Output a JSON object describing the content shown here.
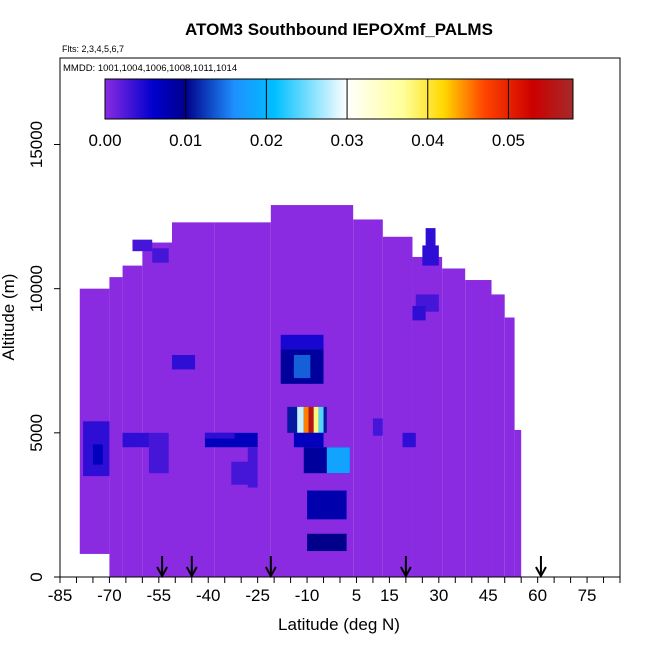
{
  "chart_data": {
    "type": "heatmap",
    "title": "ATOM3 Southbound IEPOXmf_PALMS",
    "flights_label": "Flts: 2,3,4,5,6,7",
    "dates_label": "MMDD: 1001,1004,1006,1008,1011,1014",
    "xlabel": "Latitude (deg N)",
    "ylabel": "Altitude (m)",
    "xlim": [
      -85,
      85
    ],
    "ylim": [
      0,
      18000
    ],
    "x_ticks": [
      -85,
      -80,
      -75,
      -70,
      -65,
      -60,
      -55,
      -50,
      -45,
      -40,
      -35,
      -30,
      -25,
      -20,
      -15,
      -10,
      -5,
      0,
      5,
      10,
      15,
      20,
      25,
      30,
      35,
      40,
      45,
      50,
      55,
      60,
      65,
      70,
      75,
      80,
      85
    ],
    "x_tick_labels": [
      "-85",
      "-70",
      "-55",
      "-40",
      "-25",
      "-10",
      "5",
      "15",
      "30",
      "45",
      "60",
      "75"
    ],
    "x_tick_label_values": [
      -85,
      -70,
      -55,
      -40,
      -25,
      -10,
      5,
      15,
      30,
      45,
      60,
      75
    ],
    "y_ticks": [
      0,
      5000,
      10000,
      15000
    ],
    "y_tick_labels": [
      "0",
      "5000",
      "10000",
      "15000"
    ],
    "colorbar": {
      "min": 0.0,
      "max": 0.058,
      "ticks": [
        0.0,
        0.01,
        0.02,
        0.03,
        0.04,
        0.05
      ],
      "tick_labels": [
        "0.00",
        "0.01",
        "0.02",
        "0.03",
        "0.04",
        "0.05"
      ],
      "stops": [
        {
          "v": 0.0,
          "c": "#8A2BE2"
        },
        {
          "v": 0.006,
          "c": "#0000CD"
        },
        {
          "v": 0.01,
          "c": "#00008B"
        },
        {
          "v": 0.016,
          "c": "#1E90FF"
        },
        {
          "v": 0.021,
          "c": "#00BFFF"
        },
        {
          "v": 0.03,
          "c": "#FFFFFF"
        },
        {
          "v": 0.037,
          "c": "#FFFF99"
        },
        {
          "v": 0.042,
          "c": "#FFD700"
        },
        {
          "v": 0.047,
          "c": "#FF4500"
        },
        {
          "v": 0.053,
          "c": "#CC0000"
        },
        {
          "v": 0.058,
          "c": "#A52A2A"
        }
      ]
    },
    "background_color": "#8A2BE2",
    "coverage": [
      {
        "lat": [
          -79,
          -70
        ],
        "alt": [
          800,
          10000
        ]
      },
      {
        "lat": [
          -70,
          -66
        ],
        "alt": [
          0,
          10400
        ]
      },
      {
        "lat": [
          -66,
          -60
        ],
        "alt": [
          0,
          10800
        ]
      },
      {
        "lat": [
          -60,
          -51
        ],
        "alt": [
          0,
          11600
        ]
      },
      {
        "lat": [
          -51,
          -38
        ],
        "alt": [
          0,
          12300
        ]
      },
      {
        "lat": [
          -38,
          -21
        ],
        "alt": [
          0,
          12300
        ]
      },
      {
        "lat": [
          -21,
          4
        ],
        "alt": [
          0,
          12900
        ]
      },
      {
        "lat": [
          4,
          13
        ],
        "alt": [
          0,
          12400
        ]
      },
      {
        "lat": [
          13,
          22
        ],
        "alt": [
          0,
          11800
        ]
      },
      {
        "lat": [
          22,
          31
        ],
        "alt": [
          0,
          11100
        ]
      },
      {
        "lat": [
          31,
          38
        ],
        "alt": [
          0,
          10700
        ]
      },
      {
        "lat": [
          38,
          46
        ],
        "alt": [
          0,
          10300
        ]
      },
      {
        "lat": [
          46,
          50
        ],
        "alt": [
          0,
          9800
        ]
      },
      {
        "lat": [
          50,
          53
        ],
        "alt": [
          0,
          9000
        ]
      },
      {
        "lat": [
          53,
          55
        ],
        "alt": [
          0,
          5100
        ]
      }
    ],
    "cells": [
      {
        "lat": [
          -18,
          -5
        ],
        "alt": [
          7900,
          8400
        ],
        "v": 0.005
      },
      {
        "lat": [
          -18,
          -5
        ],
        "alt": [
          6700,
          7900
        ],
        "v": 0.009
      },
      {
        "lat": [
          -14,
          -9
        ],
        "alt": [
          6900,
          7700
        ],
        "v": 0.014
      },
      {
        "lat": [
          -16,
          -4
        ],
        "alt": [
          5000,
          5900
        ],
        "v": 0.011
      },
      {
        "lat": [
          -13,
          -11
        ],
        "alt": [
          5000,
          5900
        ],
        "v": 0.028
      },
      {
        "lat": [
          -11,
          -9.5
        ],
        "alt": [
          5000,
          5900
        ],
        "v": 0.045
      },
      {
        "lat": [
          -9.5,
          -8
        ],
        "alt": [
          5000,
          5900
        ],
        "v": 0.055
      },
      {
        "lat": [
          -8,
          -6.5
        ],
        "alt": [
          5000,
          5900
        ],
        "v": 0.038
      },
      {
        "lat": [
          -6.5,
          -5
        ],
        "alt": [
          5000,
          5900
        ],
        "v": 0.024
      },
      {
        "lat": [
          -14,
          -5
        ],
        "alt": [
          4500,
          5000
        ],
        "v": 0.007
      },
      {
        "lat": [
          -11,
          3
        ],
        "alt": [
          3600,
          4500
        ],
        "v": 0.009
      },
      {
        "lat": [
          -4,
          3
        ],
        "alt": [
          3600,
          4500
        ],
        "v": 0.018
      },
      {
        "lat": [
          -10,
          2
        ],
        "alt": [
          2000,
          3000
        ],
        "v": 0.008
      },
      {
        "lat": [
          -10,
          2
        ],
        "alt": [
          900,
          1500
        ],
        "v": 0.01
      },
      {
        "lat": [
          -41,
          -25
        ],
        "alt": [
          4500,
          5000
        ],
        "v": 0.007
      },
      {
        "lat": [
          -41,
          -32
        ],
        "alt": [
          4800,
          5000
        ],
        "v": 0.004
      },
      {
        "lat": [
          -78,
          -70
        ],
        "alt": [
          3500,
          5400
        ],
        "v": 0.004
      },
      {
        "lat": [
          -75,
          -72
        ],
        "alt": [
          3900,
          4600
        ],
        "v": 0.007
      },
      {
        "lat": [
          -66,
          -58
        ],
        "alt": [
          4500,
          5000
        ],
        "v": 0.004
      },
      {
        "lat": [
          -58,
          -52
        ],
        "alt": [
          3600,
          5000
        ],
        "v": 0.003
      },
      {
        "lat": [
          -51,
          -44
        ],
        "alt": [
          7200,
          7700
        ],
        "v": 0.004
      },
      {
        "lat": [
          -57,
          -52
        ],
        "alt": [
          10900,
          11400
        ],
        "v": 0.003
      },
      {
        "lat": [
          -63,
          -57
        ],
        "alt": [
          11300,
          11700
        ],
        "v": 0.003
      },
      {
        "lat": [
          23,
          30
        ],
        "alt": [
          9200,
          9800
        ],
        "v": 0.003
      },
      {
        "lat": [
          25,
          30
        ],
        "alt": [
          10800,
          11500
        ],
        "v": 0.004
      },
      {
        "lat": [
          26,
          29
        ],
        "alt": [
          11400,
          12100
        ],
        "v": 0.004
      },
      {
        "lat": [
          22,
          26
        ],
        "alt": [
          8900,
          9400
        ],
        "v": 0.004
      },
      {
        "lat": [
          19,
          23
        ],
        "alt": [
          4500,
          5000
        ],
        "v": 0.004
      },
      {
        "lat": [
          10,
          13
        ],
        "alt": [
          4900,
          5500
        ],
        "v": 0.003
      },
      {
        "lat": [
          -33,
          -27
        ],
        "alt": [
          3200,
          4000
        ],
        "v": 0.003
      },
      {
        "lat": [
          -28,
          -25
        ],
        "alt": [
          3100,
          4500
        ],
        "v": 0.003
      }
    ],
    "arrows_latitude": [
      -54,
      -45,
      -21,
      20,
      61
    ]
  }
}
